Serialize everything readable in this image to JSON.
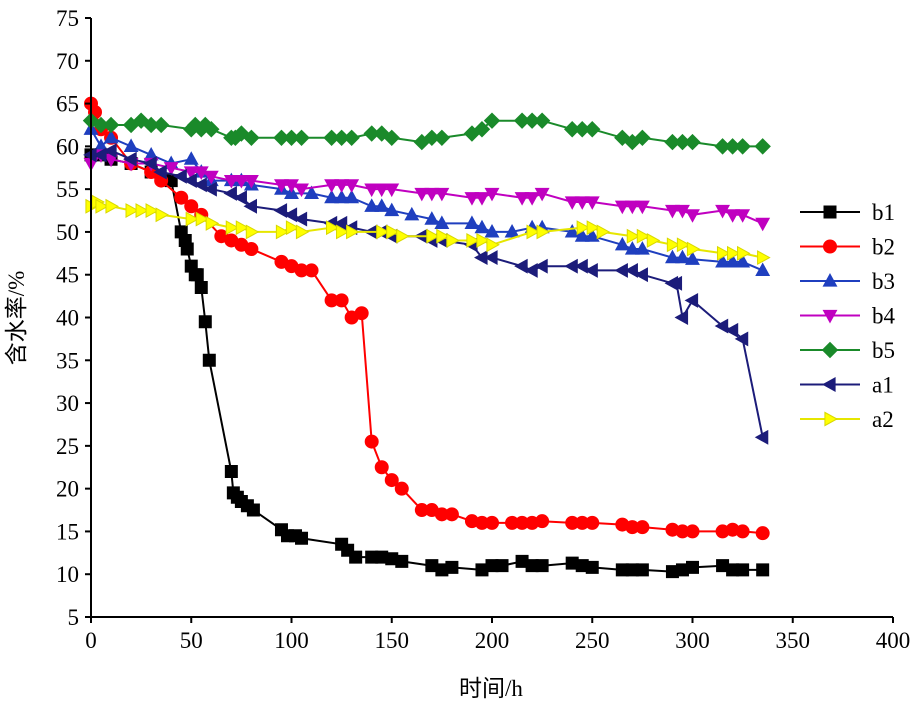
{
  "chart_data": {
    "type": "line",
    "title": "",
    "xlabel": "时间/h",
    "ylabel": "含水率/%",
    "xlim": [
      0,
      400
    ],
    "ylim": [
      5,
      75
    ],
    "xticks": [
      0,
      50,
      100,
      150,
      200,
      250,
      300,
      350,
      400
    ],
    "yticks": [
      5,
      10,
      15,
      20,
      25,
      30,
      35,
      40,
      45,
      50,
      55,
      60,
      65,
      70,
      75
    ],
    "grid": false,
    "legend_position": "right",
    "series": [
      {
        "name": "b1",
        "color": "#000000",
        "marker": "square",
        "x": [
          0,
          5,
          10,
          20,
          30,
          40,
          45,
          47,
          48,
          50,
          52,
          53,
          55,
          57,
          59,
          70,
          71,
          73,
          75,
          78,
          81,
          95,
          98,
          102,
          105,
          125,
          128,
          132,
          140,
          145,
          150,
          155,
          170,
          175,
          180,
          195,
          200,
          205,
          215,
          220,
          225,
          240,
          245,
          250,
          265,
          270,
          275,
          290,
          295,
          300,
          315,
          320,
          325,
          335
        ],
        "y": [
          59,
          59,
          58.5,
          58,
          57,
          56,
          50,
          49,
          48,
          46,
          45,
          45,
          43.5,
          39.5,
          35,
          22,
          19.5,
          19,
          18.5,
          18,
          17.5,
          15.2,
          14.5,
          14.5,
          14.2,
          13.5,
          12.8,
          12,
          12,
          12,
          11.8,
          11.5,
          11,
          10.5,
          10.8,
          10.5,
          11,
          11,
          11.5,
          11,
          11,
          11.3,
          11,
          10.8,
          10.5,
          10.5,
          10.5,
          10.3,
          10.5,
          10.8,
          11,
          10.5,
          10.5,
          10.5
        ]
      },
      {
        "name": "b2",
        "color": "#ff0000",
        "marker": "circle",
        "x": [
          0,
          2,
          5,
          10,
          20,
          30,
          35,
          45,
          50,
          55,
          65,
          70,
          75,
          80,
          95,
          100,
          105,
          110,
          120,
          125,
          130,
          135,
          140,
          145,
          150,
          155,
          165,
          170,
          175,
          180,
          190,
          195,
          200,
          210,
          215,
          220,
          225,
          240,
          245,
          250,
          265,
          270,
          275,
          290,
          295,
          300,
          315,
          320,
          325,
          335
        ],
        "y": [
          65,
          64,
          62,
          61,
          58,
          57,
          56,
          54,
          53,
          52,
          49.5,
          49,
          48.5,
          48,
          46.5,
          46,
          45.5,
          45.5,
          42,
          42,
          40,
          40.5,
          25.5,
          22.5,
          21,
          20,
          17.5,
          17.5,
          17,
          17,
          16.2,
          16,
          16,
          16,
          16,
          16,
          16.2,
          16,
          16,
          16,
          15.8,
          15.5,
          15.5,
          15.2,
          15,
          15,
          15,
          15.2,
          15,
          14.8
        ]
      },
      {
        "name": "b3",
        "color": "#1f3fbf",
        "marker": "triangle-up",
        "x": [
          0,
          5,
          10,
          20,
          30,
          40,
          50,
          55,
          60,
          70,
          75,
          80,
          95,
          100,
          110,
          120,
          125,
          130,
          140,
          145,
          150,
          160,
          170,
          175,
          190,
          195,
          200,
          210,
          220,
          225,
          240,
          245,
          250,
          265,
          270,
          275,
          290,
          295,
          300,
          315,
          320,
          325,
          335
        ],
        "y": [
          62,
          60,
          61,
          60,
          59,
          58,
          58.5,
          57,
          56,
          56,
          56,
          55.5,
          55,
          54.5,
          54.5,
          54,
          54,
          54,
          53,
          53,
          52.5,
          52,
          51.5,
          51,
          51,
          50.5,
          50,
          50,
          50.5,
          50.5,
          50,
          49.5,
          49.5,
          48.5,
          48,
          48,
          47,
          47,
          46.8,
          46.5,
          46.5,
          46.5,
          45.5
        ]
      },
      {
        "name": "b4",
        "color": "#c000c0",
        "marker": "triangle-down",
        "x": [
          0,
          5,
          10,
          20,
          30,
          40,
          50,
          55,
          60,
          70,
          75,
          80,
          95,
          100,
          105,
          120,
          125,
          130,
          140,
          145,
          150,
          165,
          170,
          175,
          190,
          195,
          200,
          215,
          220,
          225,
          240,
          245,
          250,
          265,
          270,
          275,
          290,
          295,
          300,
          315,
          320,
          325,
          335
        ],
        "y": [
          58,
          59,
          58.5,
          58,
          58,
          57.5,
          57,
          57,
          56.5,
          56,
          56,
          56,
          55.5,
          55.5,
          55,
          55.5,
          55.5,
          55.5,
          55,
          55,
          55,
          54.5,
          54.5,
          54.5,
          54,
          54,
          54.5,
          54,
          54,
          54.5,
          53.5,
          53.5,
          53.5,
          53,
          53,
          53,
          52.5,
          52.5,
          52,
          52.5,
          52,
          52,
          51
        ]
      },
      {
        "name": "b5",
        "color": "#1a8a2a",
        "marker": "diamond",
        "x": [
          0,
          5,
          10,
          20,
          25,
          30,
          35,
          50,
          52,
          55,
          57,
          60,
          70,
          72,
          75,
          80,
          95,
          100,
          105,
          120,
          125,
          130,
          140,
          145,
          150,
          165,
          170,
          175,
          190,
          195,
          200,
          215,
          220,
          225,
          240,
          245,
          250,
          265,
          270,
          275,
          290,
          295,
          300,
          315,
          320,
          325,
          335
        ],
        "y": [
          63,
          62.5,
          62.5,
          62.5,
          63,
          62.5,
          62.5,
          62,
          62.5,
          62,
          62.5,
          62,
          61,
          61,
          61.5,
          61,
          61,
          61,
          61,
          61,
          61,
          61,
          61.5,
          61.5,
          61,
          60.5,
          61,
          61,
          61.5,
          62,
          63,
          63,
          63,
          63,
          62,
          62,
          62,
          61,
          60.5,
          61,
          60.5,
          60.5,
          60.5,
          60,
          60,
          60,
          60
        ]
      },
      {
        "name": "a1",
        "color": "#1c1c7a",
        "marker": "triangle-left",
        "x": [
          0,
          5,
          10,
          20,
          30,
          35,
          45,
          50,
          55,
          60,
          70,
          75,
          80,
          95,
          100,
          105,
          120,
          125,
          130,
          140,
          145,
          150,
          165,
          170,
          175,
          190,
          195,
          200,
          215,
          220,
          225,
          240,
          245,
          250,
          265,
          270,
          275,
          290,
          292,
          295,
          300,
          315,
          320,
          325,
          335
        ],
        "y": [
          59,
          59,
          59.5,
          58.5,
          58,
          57,
          56.5,
          56,
          55.5,
          55,
          54.5,
          54,
          53,
          52.5,
          52,
          51.5,
          51,
          51,
          50.5,
          50,
          50,
          49.5,
          49.5,
          49,
          49,
          48.5,
          47,
          47,
          46,
          45.5,
          46,
          46,
          46,
          45.5,
          45.5,
          45.5,
          45,
          44,
          44,
          40,
          42,
          39,
          38.5,
          37.5,
          26
        ]
      },
      {
        "name": "a2",
        "color": "#ffff00",
        "marker": "triangle-right",
        "x": [
          0,
          3,
          5,
          10,
          20,
          25,
          30,
          35,
          50,
          55,
          60,
          70,
          75,
          80,
          95,
          100,
          105,
          120,
          125,
          130,
          145,
          150,
          155,
          170,
          175,
          180,
          190,
          195,
          200,
          220,
          225,
          245,
          250,
          255,
          270,
          275,
          280,
          290,
          295,
          300,
          315,
          320,
          325,
          335
        ],
        "y": [
          53,
          53.5,
          53,
          53,
          52.5,
          52.5,
          52.5,
          52,
          51.5,
          51.5,
          51,
          50.5,
          50.5,
          50,
          50,
          50.5,
          50,
          50.5,
          50,
          50,
          50,
          50,
          49.5,
          49.5,
          49.5,
          49,
          49,
          49,
          48.5,
          50,
          50,
          50.5,
          50.5,
          50,
          49.5,
          49.5,
          49,
          48.5,
          48.5,
          48,
          47.5,
          47.5,
          47.5,
          47
        ]
      }
    ]
  }
}
